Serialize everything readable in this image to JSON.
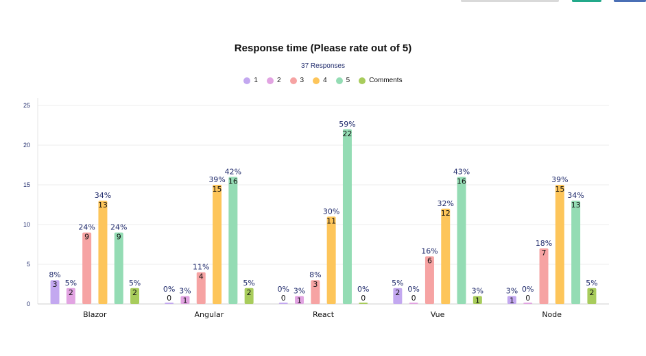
{
  "chart_data": {
    "type": "bar",
    "title": "Response time (Please rate out of 5)",
    "subtitle": "37 Responses",
    "categories": [
      "Blazor",
      "Angular",
      "React",
      "Vue",
      "Node"
    ],
    "series": [
      {
        "name": "1",
        "color": "#c3a8f0",
        "values": [
          3,
          0,
          0,
          2,
          1
        ],
        "percent_labels": [
          "8%",
          "0%",
          "0%",
          "5%",
          "3%"
        ]
      },
      {
        "name": "2",
        "color": "#e2a4e2",
        "values": [
          2,
          1,
          1,
          0,
          0
        ],
        "percent_labels": [
          "5%",
          "3%",
          "3%",
          "0%",
          "0%"
        ]
      },
      {
        "name": "3",
        "color": "#f6a3a3",
        "values": [
          9,
          4,
          3,
          6,
          7
        ],
        "percent_labels": [
          "24%",
          "11%",
          "8%",
          "16%",
          "18%"
        ]
      },
      {
        "name": "4",
        "color": "#fdc55a",
        "values": [
          13,
          15,
          11,
          12,
          15
        ],
        "percent_labels": [
          "34%",
          "39%",
          "30%",
          "32%",
          "39%"
        ]
      },
      {
        "name": "5",
        "color": "#94dcb4",
        "values": [
          9,
          16,
          22,
          16,
          13
        ],
        "percent_labels": [
          "24%",
          "42%",
          "59%",
          "43%",
          "34%"
        ]
      },
      {
        "name": "Comments",
        "color": "#a8cc5c",
        "values": [
          2,
          2,
          0,
          1,
          2
        ],
        "percent_labels": [
          "5%",
          "5%",
          "0%",
          "3%",
          "5%"
        ]
      }
    ],
    "y_ticks": [
      "0",
      "5",
      "10",
      "15",
      "20",
      "25"
    ],
    "ylim": [
      0,
      25
    ],
    "grid": true,
    "legend_position": "top-center"
  }
}
